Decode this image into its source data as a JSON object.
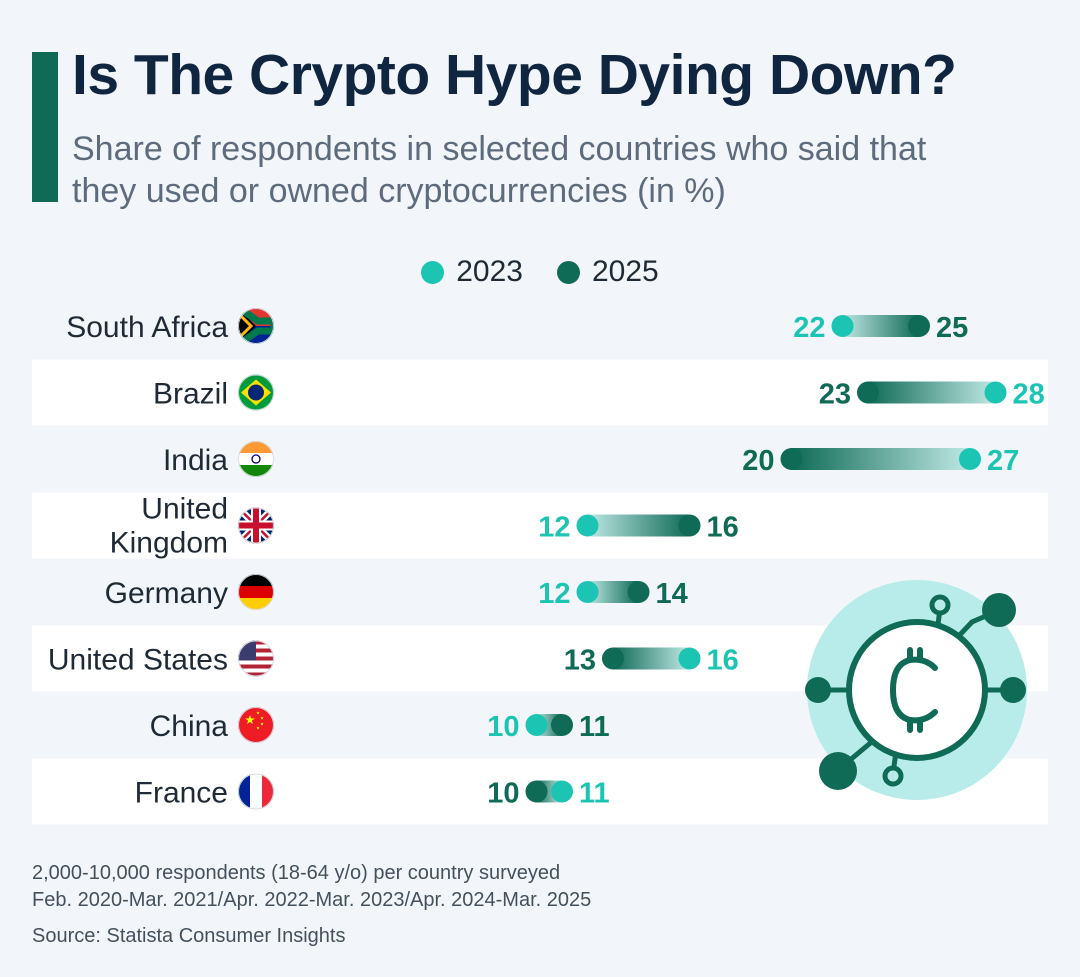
{
  "title": "Is The Crypto Hype Dying Down?",
  "subtitle": "Share of respondents in selected countries who said that they used or owned cryptocurrencies (in %)",
  "legend": [
    {
      "label": "2023",
      "color": "#1cc4b4"
    },
    {
      "label": "2025",
      "color": "#0f6a56"
    }
  ],
  "colors": {
    "year_2023": "#1cc4b4",
    "year_2025": "#0f6a56",
    "title_bar": "#0f6a56",
    "row_band": "#ffffff"
  },
  "chart_data": {
    "type": "dumbbell",
    "title": "Is The Crypto Hype Dying Down?",
    "subtitle": "Share of respondents in selected countries who said that they used or owned cryptocurrencies (in %)",
    "unit": "%",
    "categories": [
      "South Africa",
      "Brazil",
      "India",
      "United Kingdom",
      "Germany",
      "United States",
      "China",
      "France"
    ],
    "flags": [
      "south-africa-flag",
      "brazil-flag",
      "india-flag",
      "uk-flag",
      "germany-flag",
      "usa-flag",
      "china-flag",
      "france-flag"
    ],
    "series": [
      {
        "name": "2023",
        "values": [
          22,
          28,
          27,
          12,
          12,
          16,
          10,
          11
        ]
      },
      {
        "name": "2025",
        "values": [
          25,
          23,
          20,
          16,
          14,
          13,
          11,
          10
        ]
      }
    ]
  },
  "footer": {
    "note1": "2,000-10,000 respondents (18-64 y/o) per country surveyed",
    "note2": "Feb. 2020-Mar. 2021/Apr. 2022-Mar. 2023/Apr. 2024-Mar. 2025",
    "source": "Source: Statista Consumer Insights"
  },
  "decoration": {
    "icon": "bitcoin-circuit-icon"
  }
}
